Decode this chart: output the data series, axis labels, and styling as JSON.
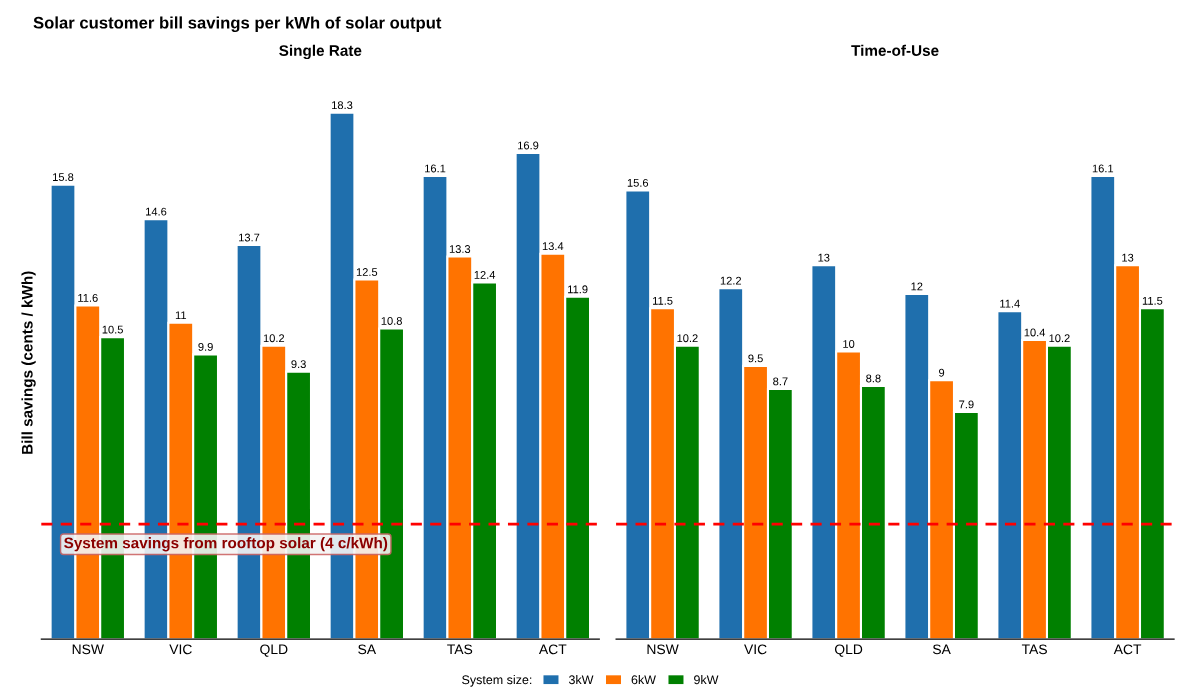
{
  "chart_data": [
    {
      "type": "bar",
      "title": "Solar customer bill savings per kWh of solar output",
      "subtitle": "Single Rate",
      "ylabel": "Bill savings (cents / kWh)",
      "legend_title": "System size:",
      "legend": "bottom",
      "categories": [
        "NSW",
        "VIC",
        "QLD",
        "SA",
        "TAS",
        "ACT"
      ],
      "series": [
        {
          "name": "3kW",
          "color": "#1f6fad",
          "values": [
            15.8,
            14.6,
            13.7,
            18.3,
            16.1,
            16.9
          ]
        },
        {
          "name": "6kW",
          "color": "#ff7300",
          "values": [
            11.6,
            11,
            10.2,
            12.5,
            13.3,
            13.4
          ]
        },
        {
          "name": "9kW",
          "color": "#008000",
          "values": [
            10.5,
            9.9,
            9.3,
            10.8,
            12.4,
            11.9
          ]
        }
      ],
      "tick_labels": "x",
      "grid": false,
      "data_labels": true,
      "ref_lines": [
        {
          "axis": "y",
          "value": 4,
          "label": "System savings from rooftop solar (4 c/kWh)",
          "color": "#ff0000",
          "line_style": "dashed"
        }
      ]
    },
    {
      "type": "bar",
      "subtitle": "Time-of-Use",
      "categories": [
        "NSW",
        "VIC",
        "QLD",
        "SA",
        "TAS",
        "ACT"
      ],
      "series": [
        {
          "color": "#1f6fad",
          "values": [
            15.6,
            12.2,
            13,
            12,
            11.4,
            16.1
          ]
        },
        {
          "color": "#ff7300",
          "values": [
            11.5,
            9.5,
            10,
            9,
            10.4,
            13
          ]
        },
        {
          "color": "#008000",
          "values": [
            10.2,
            8.7,
            8.8,
            7.9,
            10.2,
            11.5
          ]
        }
      ],
      "tick_labels": "x",
      "grid": false,
      "data_labels": true,
      "ref_lines": [
        {
          "axis": "y",
          "value": 4,
          "color": "#ff0000",
          "line_style": "dashed"
        }
      ]
    }
  ]
}
